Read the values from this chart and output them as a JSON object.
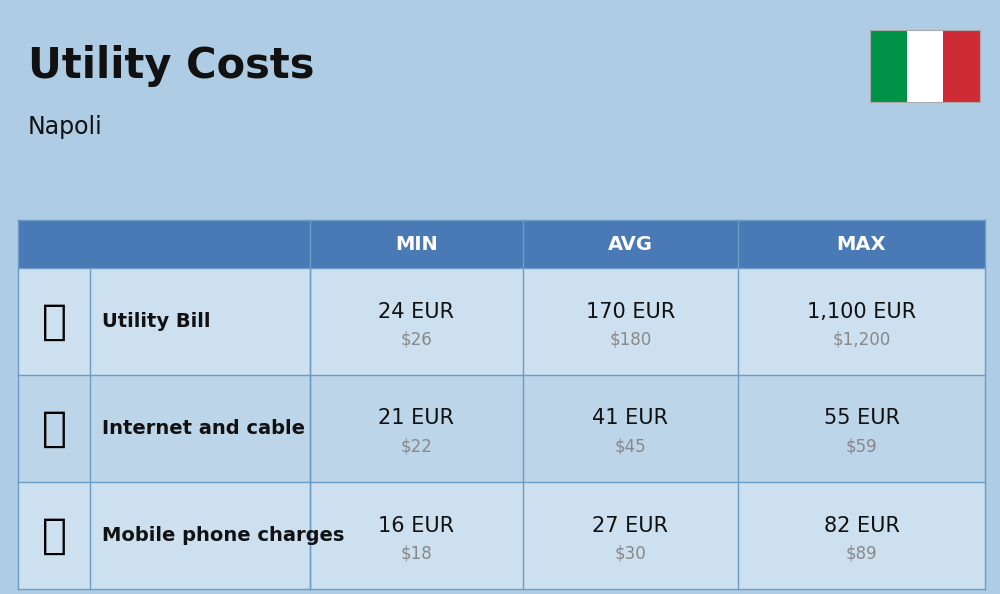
{
  "title": "Utility Costs",
  "subtitle": "Napoli",
  "background_color": "#aecce4",
  "header_bg_color": "#4a7ab5",
  "header_text_color": "#ffffff",
  "icon_col_bg": "#bdd5ea",
  "row_bg_color_1": "#cde0ef",
  "row_bg_color_2": "#bdd5e8",
  "col_header_labels": [
    "MIN",
    "AVG",
    "MAX"
  ],
  "rows": [
    {
      "label": "Utility Bill",
      "min_eur": "24 EUR",
      "min_usd": "$26",
      "avg_eur": "170 EUR",
      "avg_usd": "$180",
      "max_eur": "1,100 EUR",
      "max_usd": "$1,200"
    },
    {
      "label": "Internet and cable",
      "min_eur": "21 EUR",
      "min_usd": "$22",
      "avg_eur": "41 EUR",
      "avg_usd": "$45",
      "max_eur": "55 EUR",
      "max_usd": "$59"
    },
    {
      "label": "Mobile phone charges",
      "min_eur": "16 EUR",
      "min_usd": "$18",
      "avg_eur": "27 EUR",
      "avg_usd": "$30",
      "max_eur": "82 EUR",
      "max_usd": "$89"
    }
  ],
  "flag_colors": [
    "#009246",
    "#ffffff",
    "#ce2b37"
  ],
  "title_fontsize": 30,
  "subtitle_fontsize": 17,
  "header_fontsize": 14,
  "label_fontsize": 14,
  "value_fontsize": 15,
  "usd_fontsize": 12
}
